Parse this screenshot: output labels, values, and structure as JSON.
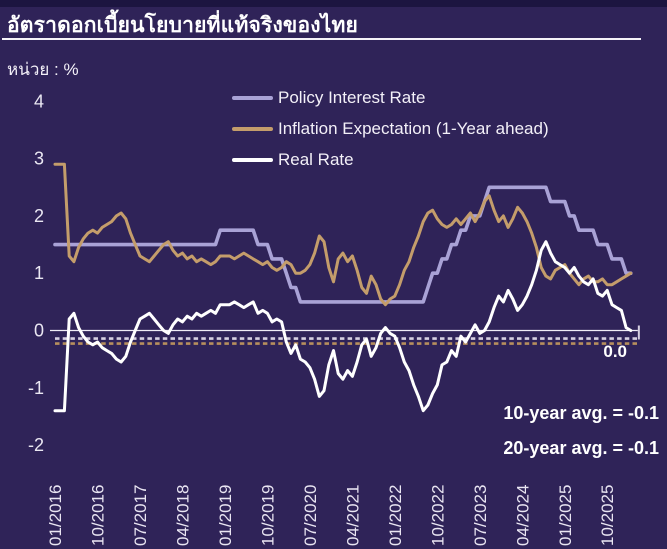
{
  "header": {
    "title": "อัตราดอกเบี้ยนโยบายที่แท้จริงของไทย",
    "unit_label": "หน่วย : %"
  },
  "colors": {
    "background": "#2f2358",
    "top_strip": "#1c1540",
    "text": "#f3f0f8",
    "policy_line": "#a9a2d6",
    "inflation_line": "#c49d6b",
    "real_line": "#ffffff",
    "zero_line": "#f0edf6",
    "avg10_dash": "#d7d1e2",
    "avg20_dash": "#b78f5d"
  },
  "chart_data": {
    "type": "line",
    "title": "อัตราดอกเบี้ยนโยบายที่แท้จริงของไทย",
    "unit": "%",
    "x_start": "01/2016",
    "x_frequency": "monthly",
    "x_tick_labels": [
      "01/2016",
      "10/2016",
      "07/2017",
      "04/2018",
      "01/2019",
      "10/2019",
      "07/2020",
      "04/2021",
      "01/2022",
      "10/2022",
      "07/2023",
      "04/2024",
      "01/2025",
      "10/2025"
    ],
    "y_ticks": [
      4,
      3,
      2,
      1,
      0,
      -1,
      -2
    ],
    "ylim": [
      -2.4,
      4.4
    ],
    "grid": false,
    "legend_position": "top",
    "series": [
      {
        "name": "Policy Interest Rate",
        "color": "#a9a2d6",
        "values": [
          1.5,
          1.5,
          1.5,
          1.5,
          1.5,
          1.5,
          1.5,
          1.5,
          1.5,
          1.5,
          1.5,
          1.5,
          1.5,
          1.5,
          1.5,
          1.5,
          1.5,
          1.5,
          1.5,
          1.5,
          1.5,
          1.5,
          1.5,
          1.5,
          1.5,
          1.5,
          1.5,
          1.5,
          1.5,
          1.5,
          1.5,
          1.5,
          1.5,
          1.5,
          1.5,
          1.75,
          1.75,
          1.75,
          1.75,
          1.75,
          1.75,
          1.75,
          1.75,
          1.5,
          1.5,
          1.5,
          1.25,
          1.25,
          1.25,
          1.0,
          0.75,
          0.75,
          0.5,
          0.5,
          0.5,
          0.5,
          0.5,
          0.5,
          0.5,
          0.5,
          0.5,
          0.5,
          0.5,
          0.5,
          0.5,
          0.5,
          0.5,
          0.5,
          0.5,
          0.5,
          0.5,
          0.5,
          0.5,
          0.5,
          0.5,
          0.5,
          0.5,
          0.5,
          0.5,
          0.75,
          1.0,
          1.0,
          1.25,
          1.25,
          1.5,
          1.5,
          1.75,
          1.75,
          2.0,
          2.0,
          2.0,
          2.25,
          2.5,
          2.5,
          2.5,
          2.5,
          2.5,
          2.5,
          2.5,
          2.5,
          2.5,
          2.5,
          2.5,
          2.5,
          2.5,
          2.25,
          2.25,
          2.25,
          2.25,
          2.0,
          2.0,
          1.75,
          1.75,
          1.75,
          1.75,
          1.5,
          1.5,
          1.5,
          1.25,
          1.25,
          1.25,
          1.0,
          1.0
        ]
      },
      {
        "name": "Inflation Expectation (1-Year ahead)",
        "color": "#c49d6b",
        "values": [
          2.9,
          2.9,
          2.9,
          1.3,
          1.2,
          1.45,
          1.6,
          1.7,
          1.75,
          1.7,
          1.8,
          1.85,
          1.9,
          2.0,
          2.05,
          1.95,
          1.7,
          1.5,
          1.3,
          1.25,
          1.2,
          1.3,
          1.4,
          1.5,
          1.55,
          1.4,
          1.3,
          1.35,
          1.25,
          1.3,
          1.2,
          1.25,
          1.2,
          1.15,
          1.2,
          1.3,
          1.3,
          1.3,
          1.25,
          1.3,
          1.35,
          1.3,
          1.25,
          1.2,
          1.15,
          1.2,
          1.1,
          1.05,
          1.1,
          1.2,
          1.15,
          1.0,
          1.0,
          1.05,
          1.15,
          1.35,
          1.65,
          1.55,
          1.1,
          0.85,
          1.25,
          1.35,
          1.2,
          1.3,
          1.05,
          0.75,
          0.65,
          0.95,
          0.8,
          0.55,
          0.45,
          0.55,
          0.6,
          0.8,
          1.05,
          1.2,
          1.45,
          1.65,
          1.9,
          2.05,
          2.1,
          1.95,
          1.85,
          1.8,
          1.85,
          1.95,
          1.85,
          1.95,
          2.05,
          1.9,
          2.05,
          2.25,
          2.35,
          2.1,
          1.9,
          2.0,
          1.8,
          1.95,
          2.15,
          2.05,
          1.9,
          1.7,
          1.45,
          1.1,
          0.95,
          0.9,
          1.05,
          1.1,
          1.15,
          1.0,
          0.9,
          0.8,
          0.9,
          0.95,
          0.85,
          0.85,
          0.9,
          0.8,
          0.8,
          0.85,
          0.9,
          0.95,
          1.0
        ]
      },
      {
        "name": "Real Rate",
        "color": "#ffffff",
        "values": [
          -1.4,
          -1.4,
          -1.4,
          0.2,
          0.3,
          0.05,
          -0.1,
          -0.2,
          -0.25,
          -0.2,
          -0.3,
          -0.35,
          -0.4,
          -0.5,
          -0.55,
          -0.45,
          -0.2,
          0.0,
          0.2,
          0.25,
          0.3,
          0.2,
          0.1,
          0.0,
          -0.05,
          0.1,
          0.2,
          0.15,
          0.25,
          0.2,
          0.3,
          0.25,
          0.3,
          0.35,
          0.3,
          0.45,
          0.45,
          0.45,
          0.5,
          0.45,
          0.4,
          0.45,
          0.5,
          0.3,
          0.35,
          0.3,
          0.15,
          0.2,
          0.15,
          -0.2,
          -0.4,
          -0.25,
          -0.5,
          -0.55,
          -0.65,
          -0.85,
          -1.15,
          -1.05,
          -0.6,
          -0.35,
          -0.75,
          -0.85,
          -0.7,
          -0.8,
          -0.55,
          -0.25,
          -0.15,
          -0.45,
          -0.3,
          -0.05,
          0.05,
          -0.05,
          -0.1,
          -0.3,
          -0.55,
          -0.7,
          -0.95,
          -1.15,
          -1.4,
          -1.3,
          -1.1,
          -0.95,
          -0.6,
          -0.55,
          -0.35,
          -0.45,
          -0.1,
          -0.2,
          -0.05,
          0.1,
          -0.05,
          0.0,
          0.15,
          0.4,
          0.6,
          0.5,
          0.7,
          0.55,
          0.35,
          0.45,
          0.6,
          0.8,
          1.05,
          1.4,
          1.55,
          1.35,
          1.2,
          1.15,
          1.1,
          1.0,
          1.1,
          0.95,
          0.85,
          0.8,
          0.9,
          0.65,
          0.6,
          0.7,
          0.45,
          0.4,
          0.35,
          0.05,
          0.0
        ]
      }
    ],
    "reference_lines": [
      {
        "name": "zero-line",
        "value": 0,
        "style": "solid",
        "color": "#f0edf6"
      },
      {
        "name": "10-year-average",
        "value": -0.1,
        "style": "dashed",
        "color": "#d7d1e2"
      },
      {
        "name": "20-year-average",
        "value": -0.1,
        "style": "dashed",
        "color": "#b78f5d"
      }
    ],
    "annotations": {
      "last_value": "0.0",
      "avg10": "10-year avg. = -0.1",
      "avg20": "20-year avg. = -0.1"
    }
  }
}
